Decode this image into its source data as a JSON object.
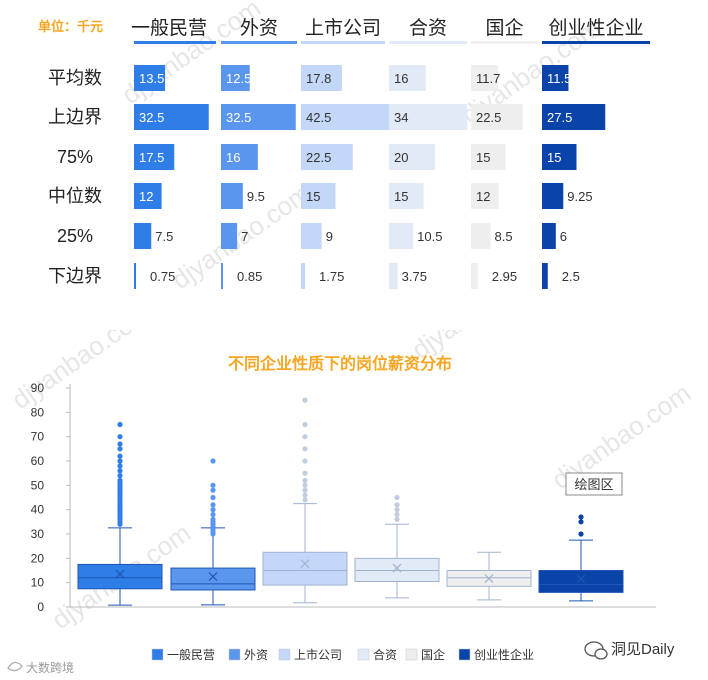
{
  "table": {
    "unit_label": "单位：千元",
    "columns": [
      "一般民营",
      "外资",
      "上市公司",
      "合资",
      "国企",
      "创业性企业"
    ],
    "rows": [
      {
        "label": "平均数",
        "values": [
          13.5,
          12.5,
          17.8,
          16,
          11.7,
          11.5
        ]
      },
      {
        "label": "上边界",
        "values": [
          32.5,
          32.5,
          42.5,
          34,
          22.5,
          27.5
        ]
      },
      {
        "label": "75%",
        "values": [
          17.5,
          16,
          22.5,
          20,
          15,
          15
        ]
      },
      {
        "label": "中位数",
        "values": [
          12,
          9.5,
          15,
          15,
          12,
          9.25
        ]
      },
      {
        "label": "25%",
        "values": [
          7.5,
          7,
          9,
          10.5,
          8.5,
          6
        ]
      },
      {
        "label": "下边界",
        "values": [
          0.75,
          0.85,
          1.75,
          3.75,
          2.95,
          2.5
        ]
      }
    ]
  },
  "colors": {
    "一般民营": "#2f7ee8",
    "外资": "#5b96ee",
    "上市公司": "#c3d8f8",
    "合资": "#e1eaf6",
    "国企": "#eeeeee",
    "创业性企业": "#0a44a8",
    "accent": "#f5a623"
  },
  "chart_data": {
    "type": "box",
    "title": "不同企业性质下的岗位薪资分布",
    "xlabel": "",
    "ylabel": "",
    "ylim": [
      0,
      90
    ],
    "yticks": [
      0,
      10,
      20,
      30,
      40,
      50,
      60,
      70,
      80,
      90
    ],
    "legend_position": "bottom",
    "grid": false,
    "series": [
      {
        "name": "一般民营",
        "mean": 13.5,
        "upper": 32.5,
        "q3": 17.5,
        "median": 12,
        "q1": 7.5,
        "lower": 0.75,
        "outliers": [
          34,
          35,
          36,
          37,
          38,
          39,
          40,
          41,
          42,
          43,
          44,
          45,
          46,
          47,
          48,
          49,
          50,
          51,
          52,
          54,
          56,
          58,
          60,
          62,
          65,
          67,
          70,
          75
        ]
      },
      {
        "name": "外资",
        "mean": 12.5,
        "upper": 32.5,
        "q3": 16,
        "median": 9.5,
        "q1": 7,
        "lower": 0.85,
        "outliers": [
          30,
          31,
          32,
          33,
          34,
          35,
          36,
          38,
          40,
          42,
          45,
          48,
          50,
          60
        ]
      },
      {
        "name": "上市公司",
        "mean": 17.8,
        "upper": 42.5,
        "q3": 22.5,
        "median": 15,
        "q1": 9,
        "lower": 1.75,
        "outliers": [
          44,
          46,
          48,
          50,
          52,
          55,
          60,
          65,
          70,
          75,
          85
        ]
      },
      {
        "name": "合资",
        "mean": 16,
        "upper": 34,
        "q3": 20,
        "median": 15,
        "q1": 10.5,
        "lower": 3.75,
        "outliers": [
          36,
          38,
          40,
          42,
          45
        ]
      },
      {
        "name": "国企",
        "mean": 11.7,
        "upper": 22.5,
        "q3": 15,
        "median": 12,
        "q1": 8.5,
        "lower": 2.95,
        "outliers": []
      },
      {
        "name": "创业性企业",
        "mean": 11.5,
        "upper": 27.5,
        "q3": 15,
        "median": 9.25,
        "q1": 6,
        "lower": 2.5,
        "outliers": [
          30,
          35,
          37
        ]
      }
    ]
  },
  "tooltip_label": "绘图区",
  "watermark": "djyanbao.com",
  "brand": "洞见Daily",
  "source_logo": "大数跨境"
}
